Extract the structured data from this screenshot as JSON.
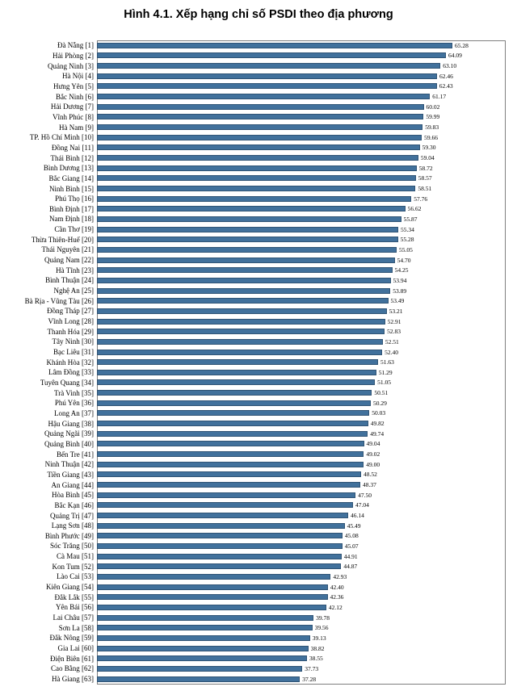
{
  "title": "Hình 4.1. Xếp hạng chỉ số PSDI theo địa phương",
  "chart_data": {
    "type": "bar",
    "orientation": "horizontal",
    "title": "Hình 4.1. Xếp hạng chỉ số PSDI theo địa phương",
    "xlabel": "",
    "ylabel": "",
    "xlim": [
      0,
      70
    ],
    "grid": false,
    "legend": "none",
    "bar_color": "#41719C",
    "categories": [
      "Đà Nẵng [1]",
      "Hải Phòng [2]",
      "Quảng Ninh [3]",
      "Hà Nội [4]",
      "Hưng Yên [5]",
      "Bắc Ninh [6]",
      "Hải Dương [7]",
      "Vĩnh Phúc [8]",
      "Hà Nam [9]",
      "TP. Hồ Chí Minh [10]",
      "Đồng Nai [11]",
      "Thái Bình [12]",
      "Bình Dương [13]",
      "Bắc Giang [14]",
      "Ninh Bình [15]",
      "Phú Thọ [16]",
      "Bình Định [17]",
      "Nam Định [18]",
      "Cần Thơ [19]",
      "Thừa Thiên-Huế [20]",
      "Thái Nguyên [21]",
      "Quảng Nam [22]",
      "Hà Tĩnh [23]",
      "Bình Thuận [24]",
      "Nghệ An [25]",
      "Bà Rịa - Vũng Tàu [26]",
      "Đồng Tháp [27]",
      "Vĩnh Long [28]",
      "Thanh Hóa [29]",
      "Tây Ninh [30]",
      "Bạc Liêu [31]",
      "Khánh Hòa [32]",
      "Lâm Đồng [33]",
      "Tuyên Quang [34]",
      "Trà Vinh [35]",
      "Phú Yên [36]",
      "Long An [37]",
      "Hậu Giang [38]",
      "Quảng Ngãi [39]",
      "Quảng Bình [40]",
      "Bến Tre [41]",
      "Ninh Thuận [42]",
      "Tiền Giang [43]",
      "An Giang [44]",
      "Hòa Bình [45]",
      "Bắc Kạn [46]",
      "Quảng Trị [47]",
      "Lạng Sơn [48]",
      "Bình Phước [49]",
      "Sóc Trăng [50]",
      "Cà Mau [51]",
      "Kon Tum [52]",
      "Lào Cai [53]",
      "Kiên Giang [54]",
      "Đắk Lắk [55]",
      "Yên Bái [56]",
      "Lai Châu [57]",
      "Sơn La [58]",
      "Đắk Nông [59]",
      "Gia Lai [60]",
      "Điện Biên [61]",
      "Cao Bằng [62]",
      "Hà Giang [63]"
    ],
    "values": [
      65.28,
      64.09,
      63.1,
      62.46,
      62.43,
      61.17,
      60.02,
      59.99,
      59.83,
      59.66,
      59.3,
      59.04,
      58.72,
      58.57,
      58.51,
      57.76,
      56.62,
      55.87,
      55.34,
      55.28,
      55.05,
      54.7,
      54.25,
      53.94,
      53.89,
      53.49,
      53.21,
      52.91,
      52.83,
      52.51,
      52.4,
      51.63,
      51.29,
      51.05,
      50.51,
      50.29,
      50.03,
      49.82,
      49.74,
      49.04,
      49.02,
      49.0,
      48.52,
      48.37,
      47.5,
      47.04,
      46.14,
      45.49,
      45.08,
      45.07,
      44.91,
      44.87,
      42.93,
      42.4,
      42.36,
      42.12,
      39.78,
      39.56,
      39.13,
      38.82,
      38.55,
      37.73,
      37.28
    ],
    "value_labels": [
      "65.28",
      "64.09",
      "63.10",
      "62.46",
      "62.43",
      "61.17",
      "60.02",
      "59.99",
      "59.83",
      "59.66",
      "59.30",
      "59.04",
      "58.72",
      "58.57",
      "58.51",
      "57.76",
      "56.62",
      "55.87",
      "55.34",
      "55.28",
      "55.05",
      "54.70",
      "54.25",
      "53.94",
      "53.89",
      "53.49",
      "53.21",
      "52.91",
      "52.83",
      "52.51",
      "52.40",
      "51.63",
      "51.29",
      "51.05",
      "50.51",
      "50.29",
      "50.03",
      "49.82",
      "49.74",
      "49.04",
      "49.02",
      "49.00",
      "48.52",
      "48.37",
      "47.50",
      "47.04",
      "46.14",
      "45.49",
      "45.08",
      "45.07",
      "44.91",
      "44.87",
      "42.93",
      "42.40",
      "42.36",
      "42.12",
      "39.78",
      "39.56",
      "39.13",
      "38.82",
      "38.55",
      "37.73",
      "37.28"
    ]
  }
}
